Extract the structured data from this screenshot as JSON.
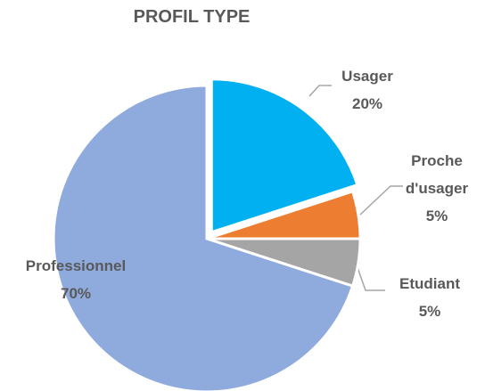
{
  "chart_data": {
    "type": "pie",
    "title": "PROFIL TYPE",
    "categories": [
      "Usager",
      "Proche d'usager",
      "Etudiant",
      "Professionnel"
    ],
    "values": [
      20,
      5,
      5,
      70
    ],
    "value_labels": [
      "20%",
      "5%",
      "5%",
      "70%"
    ],
    "colors": [
      "#00b0f0",
      "#ed7d31",
      "#a5a5a5",
      "#8faadc"
    ]
  }
}
